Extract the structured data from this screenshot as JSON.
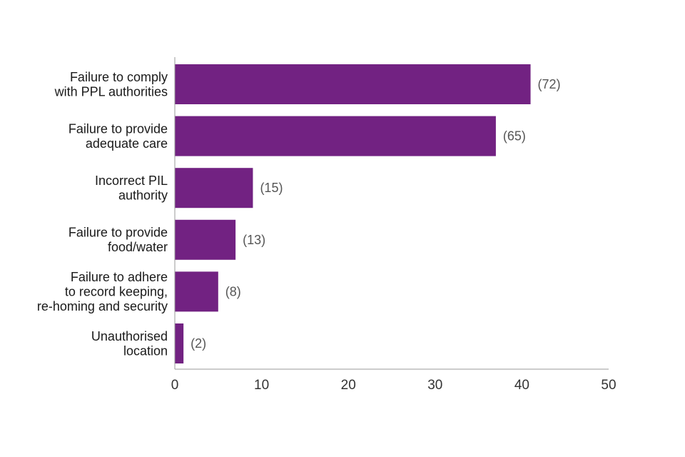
{
  "chart_data": {
    "type": "bar",
    "orientation": "horizontal",
    "categories": [
      [
        "Failure to comply",
        "with PPL authorities"
      ],
      [
        "Failure to provide",
        "adequate care"
      ],
      [
        "Incorrect PIL",
        "authority"
      ],
      [
        "Failure to provide",
        "food/water"
      ],
      [
        "Failure to adhere",
        "to record keeping,",
        "re-homing and security"
      ],
      [
        "Unauthorised",
        "location"
      ]
    ],
    "values": [
      41,
      37,
      9,
      7,
      5,
      1
    ],
    "value_labels": [
      "(72)",
      "(65)",
      "(15)",
      "(13)",
      "(8)",
      "(2)"
    ],
    "xlim": [
      0,
      50
    ],
    "xticks": [
      "0",
      "10",
      "20",
      "30",
      "40",
      "50"
    ],
    "grid": false,
    "bar_color": "#722282"
  }
}
